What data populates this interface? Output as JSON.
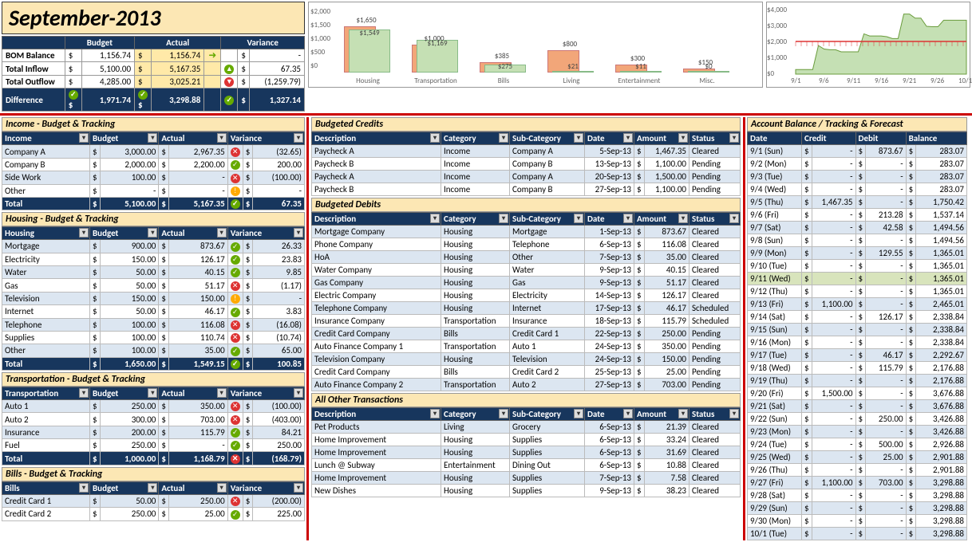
{
  "title": "September-2013",
  "summary": {
    "headers": [
      "Budget",
      "Actual",
      "Variance"
    ],
    "rows": [
      {
        "label": "BOM Balance",
        "budget": "1,156.74",
        "actual": "1,156.74",
        "variance": "-",
        "budget_icon": "",
        "actual_icon": "rt",
        "var_icon": ""
      },
      {
        "label": "Total Inflow",
        "budget": "5,100.00",
        "actual": "5,167.35",
        "variance": "67.35",
        "var_icon": "up"
      },
      {
        "label": "Total Outflow",
        "budget": "4,285.00",
        "actual": "3,025.21",
        "variance": "(1,259.79)",
        "var_icon": "dn"
      },
      {
        "label": "Difference",
        "budget": "1,971.74",
        "actual": "3,298.88",
        "variance": "1,327.14",
        "diff": true,
        "b_icon": "ok",
        "a_icon": "ok",
        "v_icon": "ok"
      }
    ]
  },
  "chart1": {
    "ymax": 2000,
    "yticks": [
      "$2,000",
      "$1,500",
      "$1,000",
      "$500",
      "$0"
    ],
    "cats": [
      {
        "name": "Housing",
        "b": 1650,
        "a": 1549,
        "blbl": "$1,650",
        "albl": "$1,549"
      },
      {
        "name": "Transportation",
        "b": 1000,
        "a": 1169,
        "blbl": "$1,000",
        "albl": "$1,169"
      },
      {
        "name": "Bills",
        "b": 385,
        "a": 275,
        "blbl": "$385",
        "albl": "$275"
      },
      {
        "name": "Living",
        "b": 800,
        "a": 21,
        "blbl": "$800",
        "albl": "$21"
      },
      {
        "name": "Entertainment",
        "b": 300,
        "a": 11,
        "blbl": "$300",
        "albl": "$11"
      },
      {
        "name": "Misc.",
        "b": 150,
        "a": 0,
        "blbl": "$150",
        "albl": "$0"
      }
    ],
    "bar_b_color": "#f2a679",
    "bar_a_color": "#c5e0b4"
  },
  "chart2": {
    "yticks": [
      "$4,000",
      "$3,000",
      "$2,000",
      "$1,000",
      "$0"
    ],
    "xlabels": [
      "9/1",
      "9/6",
      "9/11",
      "9/16",
      "9/21",
      "9/26",
      "10/1"
    ],
    "points": [
      283,
      283,
      283,
      283,
      1750,
      1537,
      1494,
      1494,
      1365,
      1365,
      1365,
      1365,
      2465,
      2338,
      2338,
      2338,
      2292,
      2176,
      2176,
      3676,
      3676,
      3426,
      3426,
      2926,
      2901,
      2901,
      3298,
      3298,
      3298,
      3298,
      3298
    ],
    "redline": 2000,
    "area_color": "#c5e0b4",
    "line_color": "#d33"
  },
  "income": {
    "title": "Income - Budget & Tracking",
    "headers": [
      "Income",
      "Budget",
      "Actual",
      "Variance"
    ],
    "rows": [
      {
        "c0": "Company A",
        "b": "3,000.00",
        "a": "2,967.35",
        "v": "(32.65)",
        "vi": "x"
      },
      {
        "c0": "Company B",
        "b": "2,000.00",
        "a": "2,200.00",
        "v": "200.00",
        "vi": "ok"
      },
      {
        "c0": "Side Work",
        "b": "100.00",
        "a": "-",
        "v": "(100.00)",
        "vi": "x"
      },
      {
        "c0": "Other",
        "b": "-",
        "a": "-",
        "v": "-",
        "vi": "warn"
      }
    ],
    "total": {
      "c0": "Total",
      "b": "5,100.00",
      "a": "5,167.35",
      "v": "67.35",
      "vi": "ok"
    }
  },
  "housing": {
    "title": "Housing - Budget & Tracking",
    "headers": [
      "Housing",
      "Budget",
      "Actual",
      "Variance"
    ],
    "rows": [
      {
        "c0": "Mortgage",
        "b": "900.00",
        "a": "873.67",
        "v": "26.33",
        "vi": "ok"
      },
      {
        "c0": "Electricity",
        "b": "150.00",
        "a": "126.17",
        "v": "23.83",
        "vi": "ok"
      },
      {
        "c0": "Water",
        "b": "50.00",
        "a": "40.15",
        "v": "9.85",
        "vi": "ok"
      },
      {
        "c0": "Gas",
        "b": "50.00",
        "a": "51.17",
        "v": "(1.17)",
        "vi": "x"
      },
      {
        "c0": "Television",
        "b": "150.00",
        "a": "150.00",
        "v": "-",
        "vi": "warn"
      },
      {
        "c0": "Internet",
        "b": "50.00",
        "a": "46.17",
        "v": "3.83",
        "vi": "ok"
      },
      {
        "c0": "Telephone",
        "b": "100.00",
        "a": "116.08",
        "v": "(16.08)",
        "vi": "x"
      },
      {
        "c0": "Supplies",
        "b": "100.00",
        "a": "110.74",
        "v": "(10.74)",
        "vi": "x"
      },
      {
        "c0": "Other",
        "b": "100.00",
        "a": "35.00",
        "v": "65.00",
        "vi": "ok"
      }
    ],
    "total": {
      "c0": "Total",
      "b": "1,650.00",
      "a": "1,549.15",
      "v": "100.85",
      "vi": "ok"
    }
  },
  "transport": {
    "title": "Transportation - Budget & Tracking",
    "headers": [
      "Transportation",
      "Budget",
      "Actual",
      "Variance"
    ],
    "rows": [
      {
        "c0": "Auto 1",
        "b": "250.00",
        "a": "350.00",
        "v": "(100.00)",
        "vi": "x"
      },
      {
        "c0": "Auto 2",
        "b": "300.00",
        "a": "703.00",
        "v": "(403.00)",
        "vi": "x"
      },
      {
        "c0": "Insurance",
        "b": "200.00",
        "a": "115.79",
        "v": "84.21",
        "vi": "ok"
      },
      {
        "c0": "Fuel",
        "b": "250.00",
        "a": "-",
        "v": "250.00",
        "vi": "ok"
      }
    ],
    "total": {
      "c0": "Total",
      "b": "1,000.00",
      "a": "1,168.79",
      "v": "(168.79)",
      "vi": "x"
    }
  },
  "bills": {
    "title": "Bills - Budget & Tracking",
    "headers": [
      "Bills",
      "Budget",
      "Actual",
      "Variance"
    ],
    "rows": [
      {
        "c0": "Credit Card 1",
        "b": "50.00",
        "a": "250.00",
        "v": "(200.00)",
        "vi": "x"
      },
      {
        "c0": "Credit Card 2",
        "b": "250.00",
        "a": "25.00",
        "v": "225.00",
        "vi": "ok"
      }
    ]
  },
  "credits": {
    "title": "Budgeted Credits",
    "headers": [
      "Description",
      "Category",
      "Sub-Category",
      "Date",
      "Amount",
      "Status"
    ],
    "rows": [
      {
        "d": "Paycheck A",
        "c": "Income",
        "s": "Company A",
        "dt": "5-Sep-13",
        "a": "1,467.35",
        "st": "Cleared"
      },
      {
        "d": "Paycheck B",
        "c": "Income",
        "s": "Company B",
        "dt": "13-Sep-13",
        "a": "1,100.00",
        "st": "Pending"
      },
      {
        "d": "Paycheck A",
        "c": "Income",
        "s": "Company A",
        "dt": "20-Sep-13",
        "a": "1,500.00",
        "st": "Pending"
      },
      {
        "d": "Paycheck B",
        "c": "Income",
        "s": "Company B",
        "dt": "27-Sep-13",
        "a": "1,100.00",
        "st": "Pending"
      }
    ]
  },
  "debits": {
    "title": "Budgeted Debits",
    "headers": [
      "Description",
      "Category",
      "Sub-Category",
      "Date",
      "Amount",
      "Status"
    ],
    "rows": [
      {
        "d": "Mortgage Company",
        "c": "Housing",
        "s": "Mortgage",
        "dt": "1-Sep-13",
        "a": "873.67",
        "st": "Cleared"
      },
      {
        "d": "Phone Company",
        "c": "Housing",
        "s": "Telephone",
        "dt": "6-Sep-13",
        "a": "116.08",
        "st": "Cleared"
      },
      {
        "d": "HoA",
        "c": "Housing",
        "s": "Other",
        "dt": "7-Sep-13",
        "a": "35.00",
        "st": "Cleared"
      },
      {
        "d": "Water Company",
        "c": "Housing",
        "s": "Water",
        "dt": "9-Sep-13",
        "a": "40.15",
        "st": "Cleared"
      },
      {
        "d": "Gas Company",
        "c": "Housing",
        "s": "Gas",
        "dt": "9-Sep-13",
        "a": "51.17",
        "st": "Cleared"
      },
      {
        "d": "Electric Company",
        "c": "Housing",
        "s": "Electricity",
        "dt": "14-Sep-13",
        "a": "126.17",
        "st": "Cleared"
      },
      {
        "d": "Telephone Company",
        "c": "Housing",
        "s": "Internet",
        "dt": "17-Sep-13",
        "a": "46.17",
        "st": "Scheduled"
      },
      {
        "d": "Insurance Company",
        "c": "Transportation",
        "s": "Insurance",
        "dt": "18-Sep-13",
        "a": "115.79",
        "st": "Scheduled"
      },
      {
        "d": "Credit Card Company",
        "c": "Bills",
        "s": "Credit Card 1",
        "dt": "22-Sep-13",
        "a": "250.00",
        "st": "Pending"
      },
      {
        "d": "Auto Finance Company 1",
        "c": "Transportation",
        "s": "Auto 1",
        "dt": "24-Sep-13",
        "a": "350.00",
        "st": "Pending"
      },
      {
        "d": "Television Company",
        "c": "Housing",
        "s": "Television",
        "dt": "24-Sep-13",
        "a": "150.00",
        "st": "Pending"
      },
      {
        "d": "Credit Card Company",
        "c": "Bills",
        "s": "Credit Card 2",
        "dt": "25-Sep-13",
        "a": "25.00",
        "st": "Pending"
      },
      {
        "d": "Auto Finance Company 2",
        "c": "Transportation",
        "s": "Auto 2",
        "dt": "27-Sep-13",
        "a": "703.00",
        "st": "Pending"
      }
    ]
  },
  "other": {
    "title": "All Other Transactions",
    "headers": [
      "Description",
      "Category",
      "Sub-Category",
      "Date",
      "Amount",
      "Status"
    ],
    "rows": [
      {
        "d": "Pet Products",
        "c": "Living",
        "s": "Grocery",
        "dt": "6-Sep-13",
        "a": "21.39",
        "st": "Cleared"
      },
      {
        "d": "Home Improvement",
        "c": "Housing",
        "s": "Supplies",
        "dt": "6-Sep-13",
        "a": "33.24",
        "st": "Cleared"
      },
      {
        "d": "Home Improvement",
        "c": "Housing",
        "s": "Supplies",
        "dt": "6-Sep-13",
        "a": "31.69",
        "st": "Cleared"
      },
      {
        "d": "Lunch @ Subway",
        "c": "Entertainment",
        "s": "Dining Out",
        "dt": "6-Sep-13",
        "a": "10.88",
        "st": "Cleared"
      },
      {
        "d": "Home Improvement",
        "c": "Housing",
        "s": "Supplies",
        "dt": "7-Sep-13",
        "a": "7.58",
        "st": "Cleared"
      },
      {
        "d": "New Dishes",
        "c": "Housing",
        "s": "Supplies",
        "dt": "9-Sep-13",
        "a": "38.23",
        "st": "Cleared"
      }
    ]
  },
  "balance": {
    "title": "Account Balance / Tracking & Forecast",
    "headers": [
      "Date",
      "Credit",
      "Debit",
      "Balance"
    ],
    "rows": [
      {
        "d": "9/1 (Sun)",
        "c": "-",
        "db": "873.67",
        "b": "283.07"
      },
      {
        "d": "9/2 (Mon)",
        "c": "-",
        "db": "-",
        "b": "283.07"
      },
      {
        "d": "9/3 (Tue)",
        "c": "-",
        "db": "-",
        "b": "283.07"
      },
      {
        "d": "9/4 (Wed)",
        "c": "-",
        "db": "-",
        "b": "283.07"
      },
      {
        "d": "9/5 (Thu)",
        "c": "1,467.35",
        "db": "-",
        "b": "1,750.42"
      },
      {
        "d": "9/6 (Fri)",
        "c": "-",
        "db": "213.28",
        "b": "1,537.14"
      },
      {
        "d": "9/7 (Sat)",
        "c": "-",
        "db": "42.58",
        "b": "1,494.56"
      },
      {
        "d": "9/8 (Sun)",
        "c": "-",
        "db": "-",
        "b": "1,494.56"
      },
      {
        "d": "9/9 (Mon)",
        "c": "-",
        "db": "129.55",
        "b": "1,365.01"
      },
      {
        "d": "9/10 (Tue)",
        "c": "-",
        "db": "-",
        "b": "1,365.01"
      },
      {
        "d": "9/11 (Wed)",
        "c": "-",
        "db": "-",
        "b": "1,365.01",
        "hl": true
      },
      {
        "d": "9/12 (Thu)",
        "c": "-",
        "db": "-",
        "b": "1,365.01"
      },
      {
        "d": "9/13 (Fri)",
        "c": "1,100.00",
        "db": "-",
        "b": "2,465.01"
      },
      {
        "d": "9/14 (Sat)",
        "c": "-",
        "db": "126.17",
        "b": "2,338.84"
      },
      {
        "d": "9/15 (Sun)",
        "c": "-",
        "db": "-",
        "b": "2,338.84"
      },
      {
        "d": "9/16 (Mon)",
        "c": "-",
        "db": "-",
        "b": "2,338.84"
      },
      {
        "d": "9/17 (Tue)",
        "c": "-",
        "db": "46.17",
        "b": "2,292.67"
      },
      {
        "d": "9/18 (Wed)",
        "c": "-",
        "db": "115.79",
        "b": "2,176.88"
      },
      {
        "d": "9/19 (Thu)",
        "c": "-",
        "db": "-",
        "b": "2,176.88"
      },
      {
        "d": "9/20 (Fri)",
        "c": "1,500.00",
        "db": "-",
        "b": "3,676.88"
      },
      {
        "d": "9/21 (Sat)",
        "c": "-",
        "db": "-",
        "b": "3,676.88"
      },
      {
        "d": "9/22 (Sun)",
        "c": "-",
        "db": "250.00",
        "b": "3,426.88"
      },
      {
        "d": "9/23 (Mon)",
        "c": "-",
        "db": "-",
        "b": "3,426.88"
      },
      {
        "d": "9/24 (Tue)",
        "c": "-",
        "db": "500.00",
        "b": "2,926.88"
      },
      {
        "d": "9/25 (Wed)",
        "c": "-",
        "db": "25.00",
        "b": "2,901.88"
      },
      {
        "d": "9/26 (Thu)",
        "c": "-",
        "db": "-",
        "b": "2,901.88"
      },
      {
        "d": "9/27 (Fri)",
        "c": "1,100.00",
        "db": "703.00",
        "b": "3,298.88"
      },
      {
        "d": "9/28 (Sat)",
        "c": "-",
        "db": "-",
        "b": "3,298.88"
      },
      {
        "d": "9/29 (Sun)",
        "c": "-",
        "db": "-",
        "b": "3,298.88"
      },
      {
        "d": "9/30 (Mon)",
        "c": "-",
        "db": "-",
        "b": "3,298.88"
      },
      {
        "d": "10/1 (Tue)",
        "c": "-",
        "db": "-",
        "b": "3,298.88"
      }
    ]
  }
}
